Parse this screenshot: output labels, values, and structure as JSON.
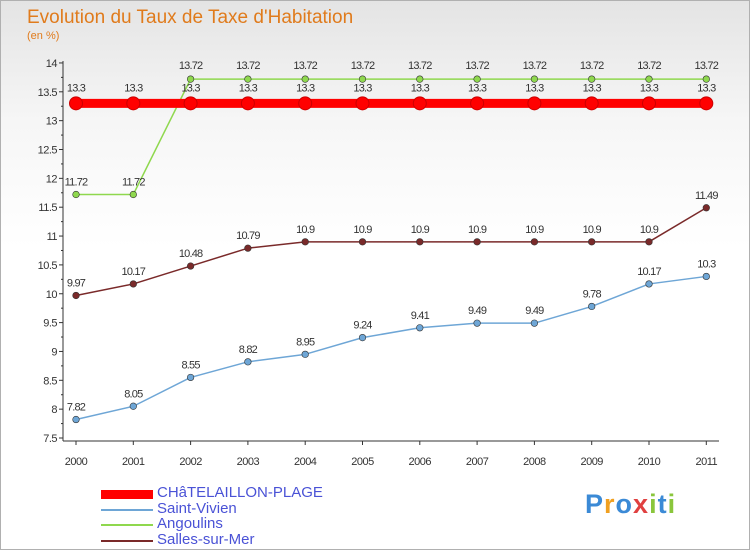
{
  "header": {
    "title": "Evolution du Taux de Taxe d'Habitation",
    "subtitle": "(en %)"
  },
  "chart_data": {
    "type": "line",
    "title": "Evolution du Taux de Taxe d'Habitation",
    "ylabel": "(en %)",
    "xlabel": "",
    "grid": false,
    "ylim": [
      7.5,
      14
    ],
    "yticks": [
      "7.5",
      "8",
      "8.5",
      "9",
      "9.5",
      "10",
      "10.5",
      "11",
      "11.5",
      "12",
      "12.5",
      "13",
      "13.5",
      "14"
    ],
    "categories": [
      "2000",
      "2001",
      "2002",
      "2003",
      "2004",
      "2005",
      "2006",
      "2007",
      "2008",
      "2009",
      "2010",
      "2011"
    ],
    "series": [
      {
        "name": "CHâTELAILLON-PLAGE",
        "color": "#ff0000",
        "values": [
          13.3,
          13.3,
          13.3,
          13.3,
          13.3,
          13.3,
          13.3,
          13.3,
          13.3,
          13.3,
          13.3,
          13.3
        ],
        "labels": [
          "13.3",
          "13.3",
          "13.3",
          "13.3",
          "13.3",
          "13.3",
          "13.3",
          "13.3",
          "13.3",
          "13.3",
          "13.3",
          "13.3"
        ]
      },
      {
        "name": "Saint-Vivien",
        "color": "#6ea6d6",
        "values": [
          7.82,
          8.05,
          8.55,
          8.82,
          8.95,
          9.24,
          9.41,
          9.49,
          9.49,
          9.78,
          10.17,
          10.3
        ],
        "labels": [
          "7.82",
          "8.05",
          "8.55",
          "8.82",
          "8.95",
          "9.24",
          "9.41",
          "9.49",
          "9.49",
          "9.78",
          "10.17",
          "10.3"
        ]
      },
      {
        "name": "Angoulins",
        "color": "#8fd84e",
        "values": [
          11.72,
          11.72,
          13.72,
          13.72,
          13.72,
          13.72,
          13.72,
          13.72,
          13.72,
          13.72,
          13.72,
          13.72
        ],
        "labels": [
          "11.72",
          "11.72",
          "13.72",
          "13.72",
          "13.72",
          "13.72",
          "13.72",
          "13.72",
          "13.72",
          "13.72",
          "13.72",
          "13.72"
        ]
      },
      {
        "name": "Salles-sur-Mer",
        "color": "#7a2a2a",
        "values": [
          9.97,
          10.17,
          10.48,
          10.79,
          10.9,
          10.9,
          10.9,
          10.9,
          10.9,
          10.9,
          10.9,
          11.49
        ],
        "labels": [
          "9.97",
          "10.17",
          "10.48",
          "10.79",
          "10.9",
          "10.9",
          "10.9",
          "10.9",
          "10.9",
          "10.9",
          "10.9",
          "11.49"
        ]
      }
    ],
    "legend": {
      "position": "bottom-left"
    }
  },
  "legend_labels": [
    "CHâTELAILLON-PLAGE",
    "Saint-Vivien",
    "Angoulins",
    "Salles-sur-Mer"
  ],
  "logo": {
    "letters": [
      "P",
      "r",
      "o",
      "x",
      "i",
      "t",
      "i"
    ],
    "colors": [
      "#3b8ad6",
      "#f0a020",
      "#3b8ad6",
      "#e04040",
      "#8ac63c",
      "#3b8ad6",
      "#8ac63c"
    ]
  }
}
